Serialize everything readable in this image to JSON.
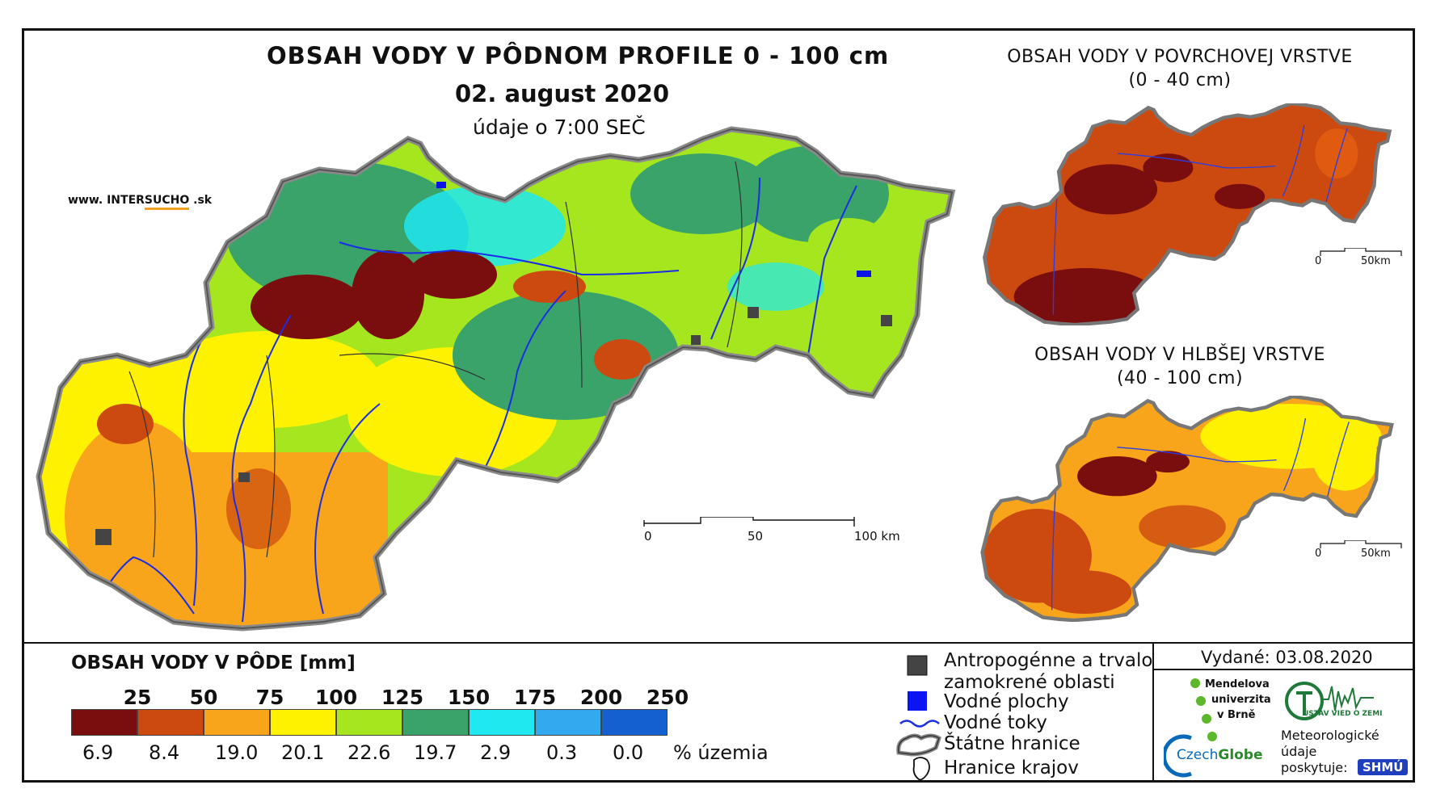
{
  "header": {
    "title": "OBSAH VODY V PÔDNOM PROFILE 0 - 100 cm",
    "date": "02. august 2020",
    "time_note": "údaje o 7:00 SEČ",
    "website_prefix": "www. INTER",
    "website_accent": "SUCHO",
    "website_suffix": " .sk"
  },
  "insets": {
    "surface_title": "OBSAH VODY V POVRCHOVEJ VRSTVE",
    "surface_depth": "(0 - 40 cm)",
    "deep_title": "OBSAH VODY V HLBŠEJ VRSTVE",
    "deep_depth": "(40 - 100 cm)",
    "scale_zero": "0",
    "scale_end": "50km"
  },
  "main_scale": {
    "zero": "0",
    "mid": "50",
    "end": "100 km"
  },
  "legend": {
    "title": "OBSAH VODY V PÔDE [mm]",
    "bounds": [
      "25",
      "50",
      "75",
      "100",
      "125",
      "150",
      "175",
      "200",
      "250"
    ],
    "classes": [
      {
        "color": "#7a0d0d",
        "percent": "6.9"
      },
      {
        "color": "#cc4a10",
        "percent": "8.4"
      },
      {
        "color": "#f9a51b",
        "percent": "19.0"
      },
      {
        "color": "#fff200",
        "percent": "20.1"
      },
      {
        "color": "#a6e61e",
        "percent": "22.6"
      },
      {
        "color": "#3aa36a",
        "percent": "19.7"
      },
      {
        "color": "#1fe8f0",
        "percent": "2.9"
      },
      {
        "color": "#33aaf0",
        "percent": "0.3"
      },
      {
        "color": "#1560d0",
        "percent": "0.0"
      }
    ],
    "unit": "% územia"
  },
  "map_legend": {
    "anthropogenic_1": "Antropogénne a trvalo",
    "anthropogenic_2": "zamokrené oblasti",
    "water_bodies": "Vodné plochy",
    "streams": "Vodné toky",
    "state_border": "Štátne hranice",
    "region_border": "Hranice krajov"
  },
  "footer": {
    "issued": "Vydané: 03.08.2020",
    "mendel_1": "Mendelova",
    "mendel_2": "univerzita",
    "mendel_3": "v Brně",
    "czechglobe_a": "Czech",
    "czechglobe_b": "Globe",
    "uvz": "ÚSTAV VIED O ZEMI",
    "meteo_1": "Meteorologické",
    "meteo_2": "údaje",
    "meteo_3": "poskytuje:",
    "shmu": "SHMÚ"
  }
}
